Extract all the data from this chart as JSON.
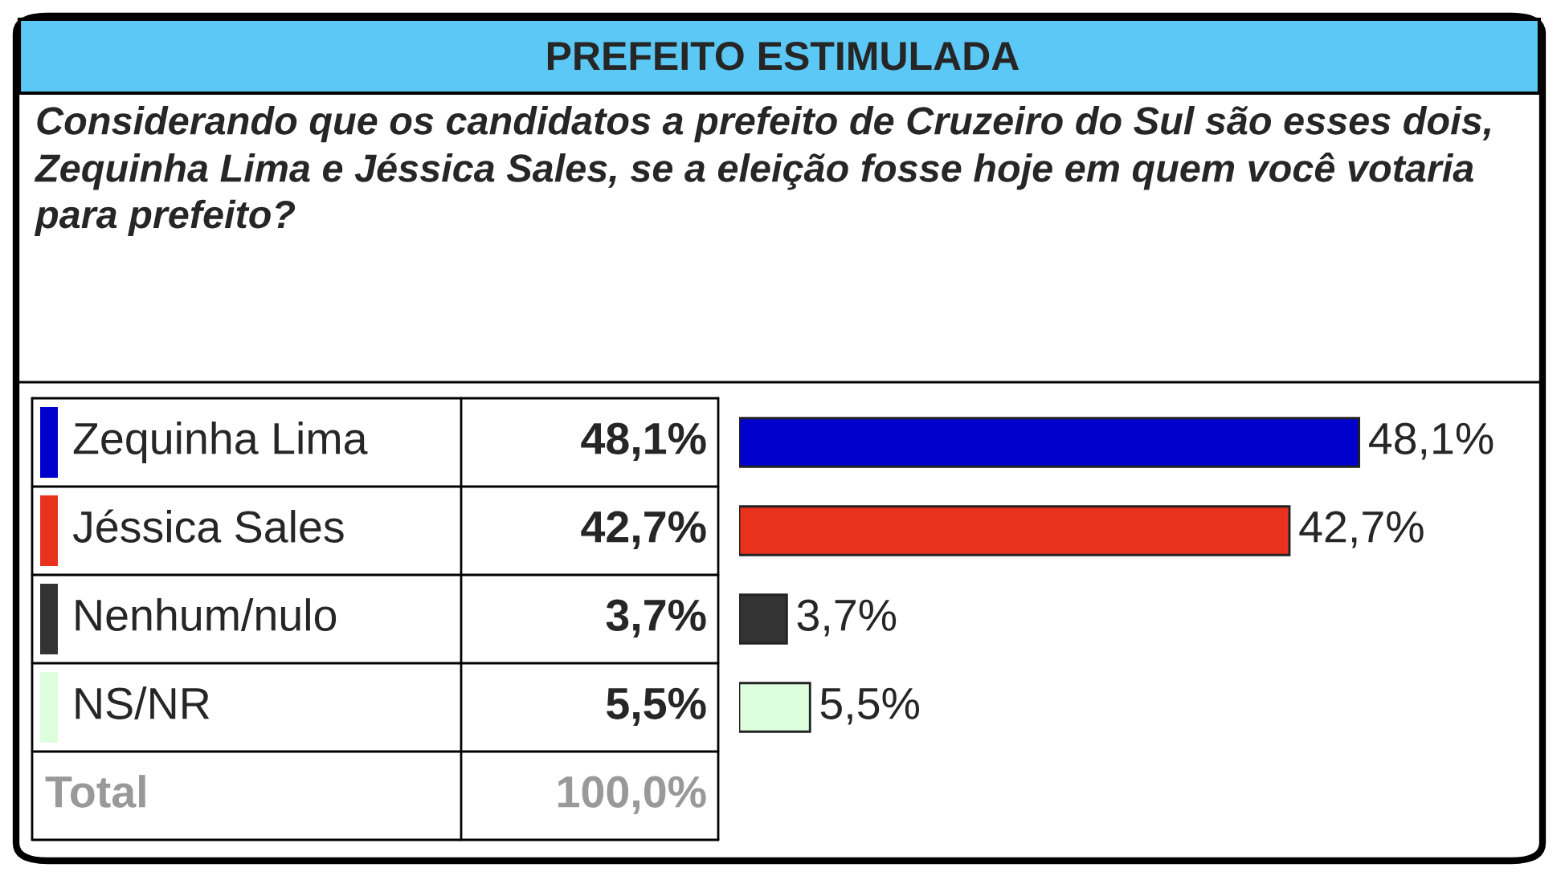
{
  "chart_data": {
    "type": "bar",
    "orientation": "horizontal",
    "title": "PREFEITO ESTIMULADA",
    "subtitle": "Considerando que os candidatos a prefeito de Cruzeiro do Sul são esses dois, Zequinha Lima e Jéssica Sales, se a eleição fosse hoje em quem você votaria para prefeito?",
    "categories": [
      "Zequinha Lima",
      "Jéssica Sales",
      "Nenhum/nulo",
      "NS/NR"
    ],
    "values": [
      48.1,
      42.7,
      3.7,
      5.5
    ],
    "colors": [
      "#0000cc",
      "#e8321e",
      "#333333",
      "#ddffdd"
    ],
    "value_labels": [
      "48,1%",
      "42,7%",
      "3,7%",
      "5,5%"
    ],
    "annotations": [
      "Total",
      "100,0%"
    ]
  }
}
